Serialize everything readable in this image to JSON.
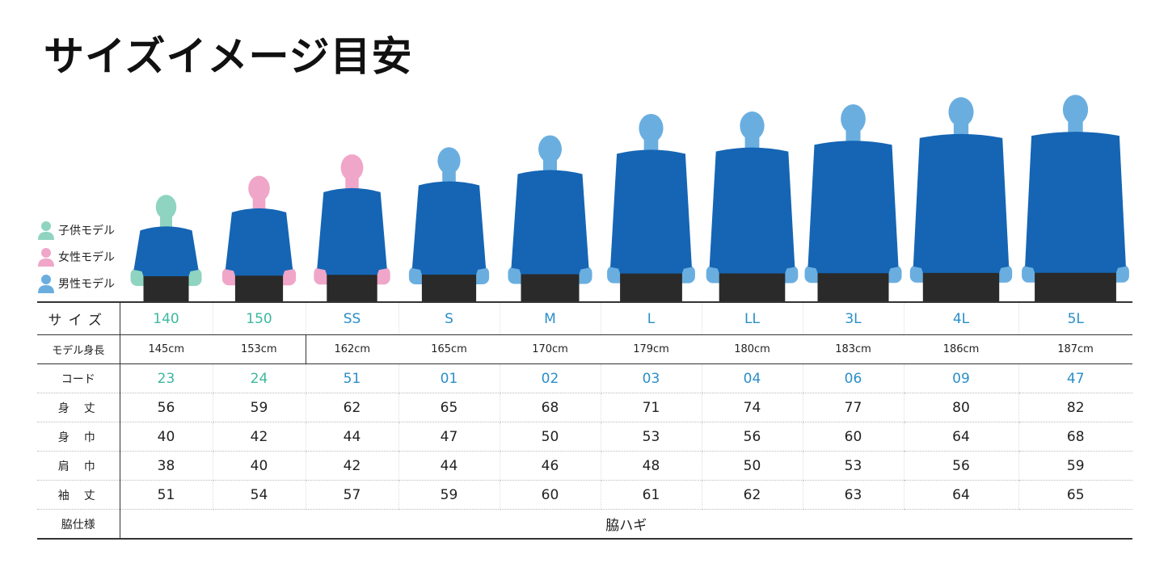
{
  "title": "サイズイメージ目安",
  "legend": [
    {
      "label": "子供モデル",
      "color": "#8fd4c0"
    },
    {
      "label": "女性モデル",
      "color": "#f0a6c8"
    },
    {
      "label": "男性モデル",
      "color": "#6aaee0"
    }
  ],
  "colors": {
    "shirt": "#1565b4",
    "shorts": "#2a2a2a",
    "kids_size": "#3db8a0",
    "size": "#2a8fc8"
  },
  "table": {
    "labels": {
      "size": "サイズ",
      "height": "モデル身長",
      "code": "コード",
      "length": "身丈",
      "width": "身巾",
      "shoulder": "肩巾",
      "sleeve": "袖丈",
      "side": "脇仕様"
    },
    "columns": [
      {
        "size": "140",
        "model": "kid",
        "height": "145cm",
        "code": "23",
        "length": "56",
        "width": "40",
        "shoulder": "38",
        "sleeve": "51"
      },
      {
        "size": "150",
        "model": "woman",
        "height": "153cm",
        "code": "24",
        "length": "59",
        "width": "42",
        "shoulder": "40",
        "sleeve": "54"
      },
      {
        "size": "SS",
        "model": "woman",
        "height": "162cm",
        "code": "51",
        "length": "62",
        "width": "44",
        "shoulder": "42",
        "sleeve": "57"
      },
      {
        "size": "S",
        "model": "man",
        "height": "165cm",
        "code": "01",
        "length": "65",
        "width": "47",
        "shoulder": "44",
        "sleeve": "59"
      },
      {
        "size": "M",
        "model": "man",
        "height": "170cm",
        "code": "02",
        "length": "68",
        "width": "50",
        "shoulder": "46",
        "sleeve": "60"
      },
      {
        "size": "L",
        "model": "man",
        "height": "179cm",
        "code": "03",
        "length": "71",
        "width": "53",
        "shoulder": "48",
        "sleeve": "61"
      },
      {
        "size": "LL",
        "model": "man",
        "height": "180cm",
        "code": "04",
        "length": "74",
        "width": "56",
        "shoulder": "50",
        "sleeve": "62"
      },
      {
        "size": "3L",
        "model": "man",
        "height": "183cm",
        "code": "06",
        "length": "77",
        "width": "60",
        "shoulder": "53",
        "sleeve": "63"
      },
      {
        "size": "4L",
        "model": "man",
        "height": "186cm",
        "code": "09",
        "length": "80",
        "width": "64",
        "shoulder": "56",
        "sleeve": "64"
      },
      {
        "size": "5L",
        "model": "man",
        "height": "187cm",
        "code": "47",
        "length": "82",
        "width": "68",
        "shoulder": "59",
        "sleeve": "65"
      }
    ],
    "side_value": "脇ハギ"
  }
}
